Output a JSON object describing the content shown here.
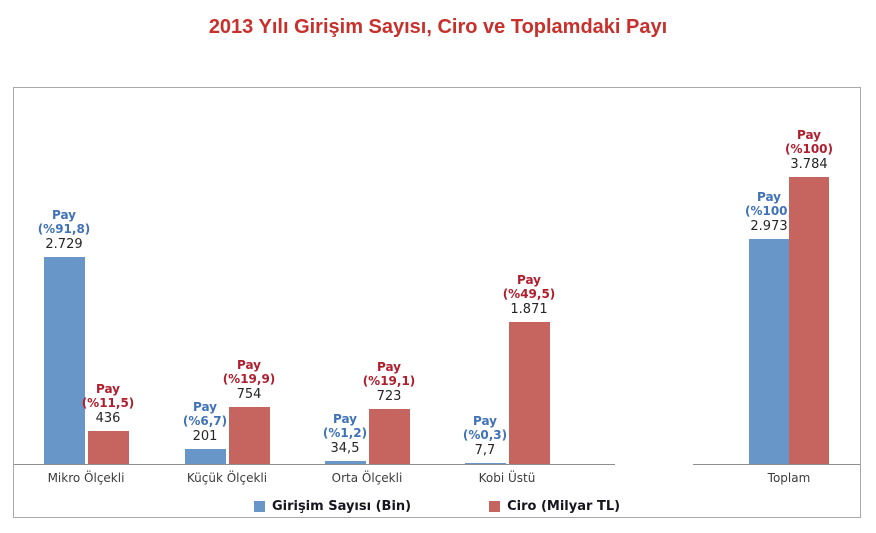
{
  "title": "2013 Yılı Girişim Sayısı, Ciro ve Toplamdaki Payı",
  "colors": {
    "title": "#C8302C",
    "bar_blue": "#6996C8",
    "bar_red": "#C6655F",
    "share_label_blue": "#4072B8",
    "share_label_red": "#B01E2D",
    "value_text": "#262626",
    "category_text": "#3C3C3C",
    "legend_text": "#16161E",
    "box_border": "#A9A9A9",
    "axis_line": "#8F8F8F"
  },
  "chart_data": {
    "type": "bar",
    "title": "2013 Yılı Girişim Sayısı, Ciro ve Toplamdaki Payı",
    "categories": [
      "Mikro Ölçekli",
      "Küçük Ölçekli",
      "Orta Ölçekli",
      "Kobi Üstü",
      "Toplam"
    ],
    "share_word": "Pay",
    "series": [
      {
        "name": "Girişim Sayısı (Bin)",
        "color": "#6996C8",
        "label_color": "#4072B8",
        "values": [
          2729,
          201,
          34.5,
          7.7,
          2973
        ],
        "value_labels": [
          "2.729",
          "201",
          "34,5",
          "7,7",
          "2.973"
        ],
        "share_labels": [
          "(%91,8)",
          "(%6,7)",
          "(%1,2)",
          "(%0,3)",
          "(%100)"
        ]
      },
      {
        "name": "Ciro (Milyar TL)",
        "color": "#C6655F",
        "label_color": "#B01E2D",
        "values": [
          436,
          754,
          723,
          1871,
          3784
        ],
        "value_labels": [
          "436",
          "754",
          "723",
          "1.871",
          "3.784"
        ],
        "share_labels": [
          "(%11,5)",
          "(%19,9)",
          "(%19,1)",
          "(%49,5)",
          "(%100)"
        ]
      }
    ],
    "ylim": [
      0,
      3784
    ],
    "grid": false,
    "legend_position": "bottom",
    "axis_split_after": "Kobi Üstü"
  }
}
